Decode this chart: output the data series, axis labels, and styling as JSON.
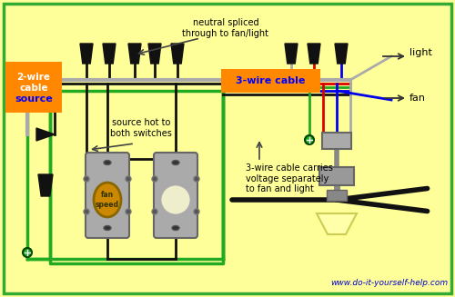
{
  "bg_color": "#FFFF99",
  "border_color": "#33AA33",
  "watermark": "www.do-it-yourself-help.com",
  "watermark_color": "#0000CC",
  "label_2wire_bg": "#FF8800",
  "label_2wire_text_color": "#0000FF",
  "label_3wire_bg": "#FF8800",
  "label_3wire_text_color": "#0000FF",
  "wire_black": "#111111",
  "wire_white": "#AAAAAA",
  "wire_green": "#22AA22",
  "wire_red": "#DD0000",
  "wire_blue": "#0000EE",
  "switch_fill": "#AAAAAA",
  "switch_border": "#666666",
  "switch_knob1_fill": "#CC8800",
  "switch_knob1_border": "#886600",
  "switch_knob2_fill": "#EEEECC",
  "switch_knob2_border": "#AAAAAA",
  "cone_color": "#111111",
  "fan_blade_color": "#111111",
  "fan_mount_color": "#888888",
  "light_fill": "#FFFFAA",
  "light_edge": "#CCCC55",
  "ground_screw": "#22AA22",
  "ann_neutral": "neutral spliced\nthrough to fan/light",
  "ann_source_hot": "source hot to\nboth switches",
  "ann_3wire_carries": "3-wire cable carries\nvoltage separately\nto fan and light",
  "ann_light": "light",
  "ann_fan": "fan"
}
